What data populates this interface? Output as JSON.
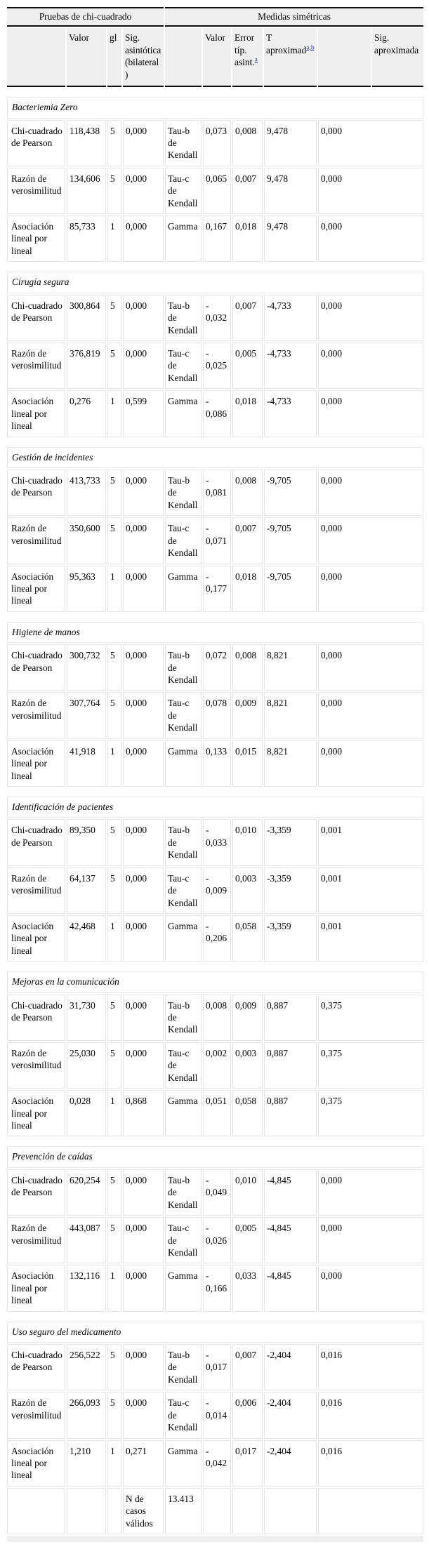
{
  "colors": {
    "header_background": "#efefef",
    "rule_black": "#0c0c0c",
    "grid_gray": "#e4e4e4",
    "footnote_link_blue": "#3645be"
  },
  "table": {
    "group_headers": {
      "chi_square": "Pruebas de chi-cuadrado",
      "symmetric_measures": "Medidas simétricas"
    },
    "column_headers": {
      "valor1": "Valor",
      "gl": "gl",
      "sig_asintotica": "Sig. asintótica (bilateral)",
      "valor2": "Valor",
      "error_tip": "Error típ. asint.",
      "t_aproximad": "T aproximad",
      "sig_aproximada": "Sig. aproximada"
    },
    "footnote_markers": {
      "error_tip": "a",
      "t_aproximad": "a,b"
    },
    "sections": [
      {
        "title": "Bacteriemia Zero",
        "rows": [
          {
            "test": "Chi-cuadrado de Pearson",
            "valor": "118,438",
            "gl": "5",
            "sig": "0,000",
            "measure": "Tau-b de Kendall",
            "m_valor": "0,073",
            "error": "0,008",
            "t": "9,478",
            "m_sig": "0,000"
          },
          {
            "test": "Razón de verosimilitud",
            "valor": "134,606",
            "gl": "5",
            "sig": "0,000",
            "measure": "Tau-c de Kendall",
            "m_valor": "0,065",
            "error": "0,007",
            "t": "9,478",
            "m_sig": "0,000"
          },
          {
            "test": "Asociación lineal por lineal",
            "valor": "85,733",
            "gl": "1",
            "sig": "0,000",
            "measure": "Gamma",
            "m_valor": "0,167",
            "error": "0,018",
            "t": "9,478",
            "m_sig": "0,000"
          }
        ]
      },
      {
        "title": "Cirugía segura",
        "rows": [
          {
            "test": "Chi-cuadrado de Pearson",
            "valor": "300,864",
            "gl": "5",
            "sig": "0,000",
            "measure": "Tau-b de Kendall",
            "m_valor": "-0,032",
            "error": "0,007",
            "t": "-4,733",
            "m_sig": "0,000"
          },
          {
            "test": "Razón de verosimilitud",
            "valor": "376,819",
            "gl": "5",
            "sig": "0,000",
            "measure": "Tau-c de Kendall",
            "m_valor": "-0,025",
            "error": "0,005",
            "t": "-4,733",
            "m_sig": "0,000"
          },
          {
            "test": "Asociación lineal por lineal",
            "valor": "0,276",
            "gl": "1",
            "sig": "0,599",
            "measure": "Gamma",
            "m_valor": "-0,086",
            "error": "0,018",
            "t": "-4,733",
            "m_sig": "0,000"
          }
        ]
      },
      {
        "title": "Gestión de incidentes",
        "rows": [
          {
            "test": "Chi-cuadrado de Pearson",
            "valor": "413,733",
            "gl": "5",
            "sig": "0,000",
            "measure": "Tau-b de Kendall",
            "m_valor": "-0,081",
            "error": "0,008",
            "t": "-9,705",
            "m_sig": "0,000"
          },
          {
            "test": "Razón de verosimilitud",
            "valor": "350,600",
            "gl": "5",
            "sig": "0,000",
            "measure": "Tau-c de Kendall",
            "m_valor": "-0,071",
            "error": "0,007",
            "t": "-9,705",
            "m_sig": "0,000"
          },
          {
            "test": "Asociación lineal por lineal",
            "valor": "95,363",
            "gl": "1",
            "sig": "0,000",
            "measure": "Gamma",
            "m_valor": "-0,177",
            "error": "0,018",
            "t": "-9,705",
            "m_sig": "0,000"
          }
        ]
      },
      {
        "title": "Higiene de manos",
        "rows": [
          {
            "test": "Chi-cuadrado de Pearson",
            "valor": "300,732",
            "gl": "5",
            "sig": "0,000",
            "measure": "Tau-b de Kendall",
            "m_valor": "0,072",
            "error": "0,008",
            "t": "8,821",
            "m_sig": "0,000"
          },
          {
            "test": "Razón de verosimilitud",
            "valor": "307,764",
            "gl": "5",
            "sig": "0,000",
            "measure": "Tau-c de Kendall",
            "m_valor": "0,078",
            "error": "0,009",
            "t": "8,821",
            "m_sig": "0,000"
          },
          {
            "test": "Asociación lineal por lineal",
            "valor": "41,918",
            "gl": "1",
            "sig": "0,000",
            "measure": "Gamma",
            "m_valor": "0,133",
            "error": "0,015",
            "t": "8,821",
            "m_sig": "0,000"
          }
        ]
      },
      {
        "title": "Identificación de pacientes",
        "rows": [
          {
            "test": "Chi-cuadrado de Pearson",
            "valor": "89,350",
            "gl": "5",
            "sig": "0,000",
            "measure": "Tau-b de Kendall",
            "m_valor": "-0,033",
            "error": "0,010",
            "t": "-3,359",
            "m_sig": "0,001"
          },
          {
            "test": "Razón de verosimilitud",
            "valor": "64,137",
            "gl": "5",
            "sig": "0,000",
            "measure": "Tau-c de Kendall",
            "m_valor": "-0,009",
            "error": "0,003",
            "t": "-3,359",
            "m_sig": "0,001"
          },
          {
            "test": "Asociación lineal por lineal",
            "valor": "42,468",
            "gl": "1",
            "sig": "0,000",
            "measure": "Gamma",
            "m_valor": "-0,206",
            "error": "0,058",
            "t": "-3,359",
            "m_sig": "0,001"
          }
        ]
      },
      {
        "title": "Mejoras en la comunicación",
        "rows": [
          {
            "test": "Chi-cuadrado de Pearson",
            "valor": "31,730",
            "gl": "5",
            "sig": "0,000",
            "measure": "Tau-b de Kendall",
            "m_valor": "0,008",
            "error": "0,009",
            "t": "0,887",
            "m_sig": "0,375"
          },
          {
            "test": "Razón de verosimilitud",
            "valor": "25,030",
            "gl": "5",
            "sig": "0,000",
            "measure": "Tau-c de Kendall",
            "m_valor": "0,002",
            "error": "0,003",
            "t": "0,887",
            "m_sig": "0,375"
          },
          {
            "test": "Asociación lineal por lineal",
            "valor": "0,028",
            "gl": "1",
            "sig": "0,868",
            "measure": "Gamma",
            "m_valor": "0,051",
            "error": "0,058",
            "t": "0,887",
            "m_sig": "0,375"
          }
        ]
      },
      {
        "title": "Prevención de caídas",
        "rows": [
          {
            "test": "Chi-cuadrado de Pearson",
            "valor": "620,254",
            "gl": "5",
            "sig": "0,000",
            "measure": "Tau-b de Kendall",
            "m_valor": "-0,049",
            "error": "0,010",
            "t": "-4,845",
            "m_sig": "0,000"
          },
          {
            "test": "Razón de verosimilitud",
            "valor": "443,087",
            "gl": "5",
            "sig": "0,000",
            "measure": "Tau-c de Kendall",
            "m_valor": "-0,026",
            "error": "0,005",
            "t": "-4,845",
            "m_sig": "0,000"
          },
          {
            "test": "Asociación lineal por lineal",
            "valor": "132,116",
            "gl": "1",
            "sig": "0,000",
            "measure": "Gamma",
            "m_valor": "-0,166",
            "error": "0,033",
            "t": "-4,845",
            "m_sig": "0,000"
          }
        ]
      },
      {
        "title": "Uso seguro del medicamento",
        "rows": [
          {
            "test": "Chi-cuadrado de Pearson",
            "valor": "256,522",
            "gl": "5",
            "sig": "0,000",
            "measure": "Tau-b de Kendall",
            "m_valor": "-0,017",
            "error": "0,007",
            "t": "-2,404",
            "m_sig": "0,016"
          },
          {
            "test": "Razón de verosimilitud",
            "valor": "266,093",
            "gl": "5",
            "sig": "0,000",
            "measure": "Tau-c de Kendall",
            "m_valor": "-0,014",
            "error": "0,006",
            "t": "-2,404",
            "m_sig": "0,016"
          },
          {
            "test": "Asociación lineal por lineal",
            "valor": "1,210",
            "gl": "1",
            "sig": "0,271",
            "measure": "Gamma",
            "m_valor": "-0,042",
            "error": "0,017",
            "t": "-2,404",
            "m_sig": "0,016"
          }
        ]
      }
    ],
    "footer": {
      "label": "N de casos válidos",
      "value": "13.413"
    }
  }
}
